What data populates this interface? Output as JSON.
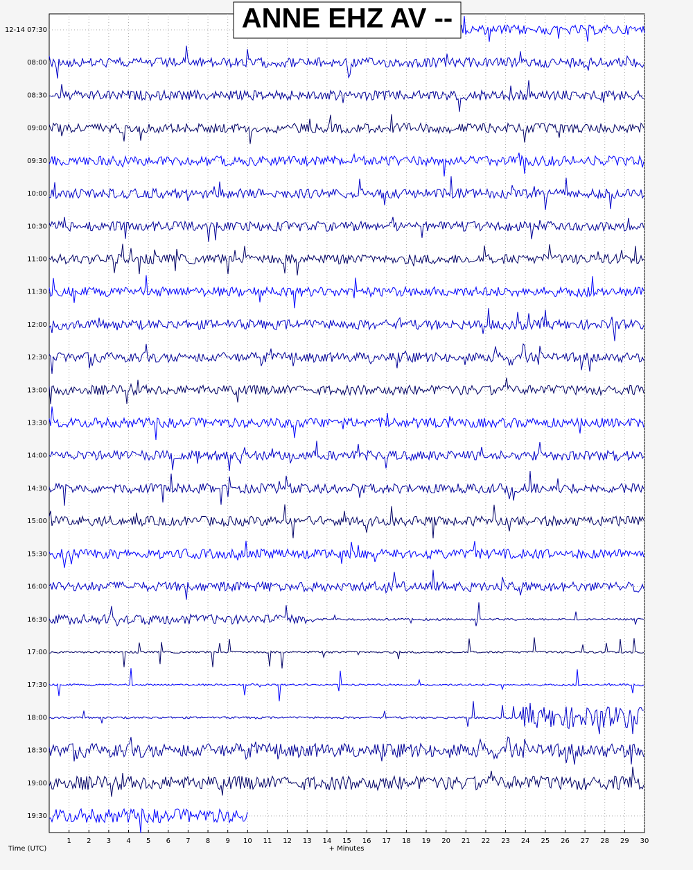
{
  "chart_data": {
    "type": "helicorder",
    "title": "ANNE EHZ AV --",
    "categories": [
      "12-14 07:30",
      "08:00",
      "08:30",
      "09:00",
      "09:30",
      "10:00",
      "10:30",
      "11:00",
      "11:30",
      "12:00",
      "12:30",
      "13:00",
      "13:30",
      "14:00",
      "14:30",
      "15:00",
      "15:30",
      "16:00",
      "16:30",
      "17:00",
      "17:30",
      "18:00",
      "18:30",
      "19:00",
      "19:30"
    ],
    "ylabel": "Time (UTC)",
    "xlabel": "+ Minutes",
    "xlim": [
      0,
      30
    ],
    "xticks": [
      1,
      2,
      3,
      4,
      5,
      6,
      7,
      8,
      9,
      10,
      11,
      12,
      13,
      14,
      15,
      16,
      17,
      18,
      19,
      20,
      21,
      22,
      23,
      24,
      25,
      26,
      27,
      28,
      29,
      30
    ],
    "grid": true,
    "trace_colors": [
      "#0000ff",
      "#0000c8",
      "#000096",
      "#000064"
    ]
  }
}
